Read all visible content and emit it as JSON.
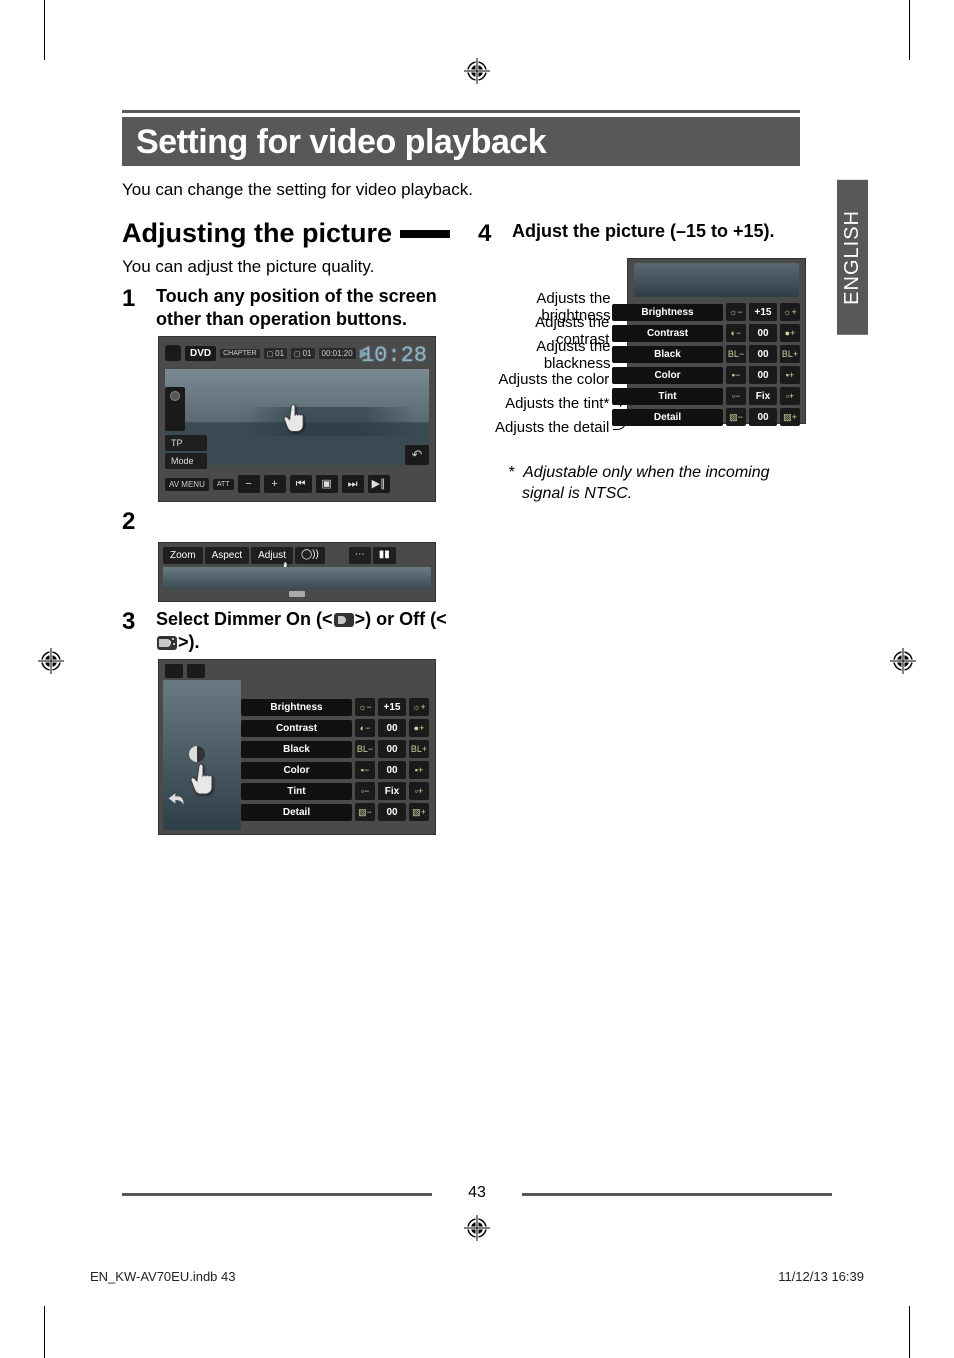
{
  "language_tab": "ENGLISH",
  "title": "Setting for video playback",
  "intro": "You can change the setting for video playback.",
  "section_heading": "Adjusting the picture",
  "section_intro": "You can adjust the picture quality.",
  "steps": {
    "s1": "Touch any position of the screen other than operation buttons.",
    "s3": "Select Dimmer On (< > ) or Off (< >).",
    "s3_pre": "Select Dimmer On (<",
    "s3_mid": ">) or Off (<",
    "s3_post": ">).",
    "s4": "Adjust the picture (–15 to +15)."
  },
  "screen1": {
    "source": "DVD",
    "chap_label": "CHAPTER",
    "title_num": "01",
    "chap_num": "01",
    "time": "00:01:20",
    "clock": "10:28",
    "tp": "TP",
    "mode": "Mode",
    "avmenu": "AV MENU",
    "att": "ATT"
  },
  "screen2": {
    "zoom": "Zoom",
    "aspect": "Aspect",
    "adjust": "Adjust"
  },
  "adjust_rows": [
    {
      "label": "Brightness",
      "left": "☼−",
      "val": "+15",
      "right": "☼+"
    },
    {
      "label": "Contrast",
      "left": "◐−",
      "val": "00",
      "right": "●+"
    },
    {
      "label": "Black",
      "left": "BL−",
      "val": "00",
      "right": "BL+"
    },
    {
      "label": "Color",
      "left": "▪−",
      "val": "00",
      "right": "▪+"
    },
    {
      "label": "Tint",
      "left": "▫−",
      "val": "Fix",
      "right": "▫+"
    },
    {
      "label": "Detail",
      "left": "▨−",
      "val": "00",
      "right": "▨+"
    }
  ],
  "callouts": [
    "Adjusts the brightness",
    "Adjusts the contrast",
    "Adjusts the blackness",
    "Adjusts the color",
    "Adjusts the tint*",
    "Adjusts the detail"
  ],
  "footnote_marker": "*",
  "footnote": "Adjustable only when the incoming signal is NTSC.",
  "page_number": "43",
  "footer_left": "EN_KW-AV70EU.indb   43",
  "footer_right": "11/12/13   16:39"
}
